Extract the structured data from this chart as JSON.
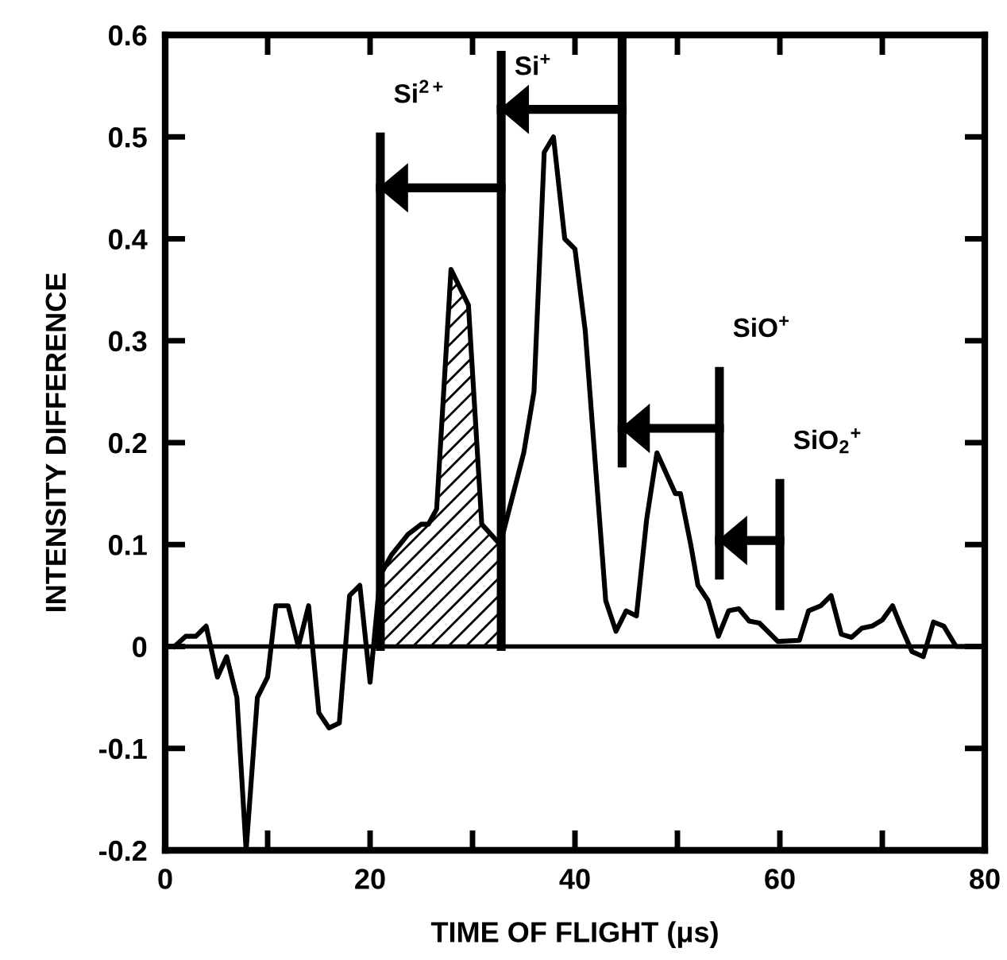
{
  "chart_data": {
    "type": "line",
    "xlabel": "TIME OF FLIGHT (μs)",
    "ylabel": "INTENSITY DIFFERENCE",
    "xlim": [
      0,
      80
    ],
    "ylim": [
      -0.2,
      0.6
    ],
    "xticks": [
      0,
      {
        "value": 10,
        "label": null
      },
      20,
      {
        "value": 30,
        "label": null
      },
      40,
      {
        "value": 50,
        "label": null
      },
      60,
      {
        "value": 70,
        "label": null
      },
      80
    ],
    "yticks": [
      -0.2,
      -0.1,
      0,
      0.1,
      0.2,
      0.3,
      0.4,
      0.5,
      0.6
    ],
    "grid": false,
    "legend": false,
    "marker": "none",
    "line_style": "solid",
    "ref_lines": [
      {
        "axis": "y",
        "value": 0,
        "color": "#000000"
      }
    ],
    "series": [
      {
        "type": "line",
        "color": "#000000",
        "x": [
          0.9,
          2,
          3,
          4,
          5.1,
          6,
          7,
          7.9,
          9,
          10,
          10.8,
          12,
          13,
          14,
          15,
          16,
          17,
          18,
          19,
          20,
          21,
          22.1,
          23.7,
          25,
          25.7,
          26.5,
          27.9,
          29.6,
          30.9,
          32.7,
          35,
          36,
          37,
          37.9,
          39,
          40,
          41,
          43,
          44,
          45,
          46,
          47,
          48,
          49.8,
          50.3,
          51.3,
          52,
          53,
          54,
          55,
          56,
          57,
          58,
          59.8,
          61.9,
          62.8,
          64,
          65,
          66,
          67,
          68,
          69,
          70,
          71,
          71.8,
          72.9,
          74,
          75,
          76,
          77.2,
          78,
          79.5
        ],
        "values": [
          0.0,
          0.01,
          0.01,
          0.02,
          -0.03,
          -0.01,
          -0.05,
          -0.2,
          -0.05,
          -0.03,
          0.04,
          0.04,
          0.0,
          0.04,
          -0.065,
          -0.08,
          -0.075,
          0.05,
          0.06,
          -0.035,
          0.07,
          0.09,
          0.11,
          0.12,
          0.12,
          0.135,
          0.37,
          0.335,
          0.12,
          0.1,
          0.19,
          0.25,
          0.485,
          0.5,
          0.4,
          0.39,
          0.31,
          0.045,
          0.015,
          0.035,
          0.03,
          0.125,
          0.19,
          0.15,
          0.15,
          0.1,
          0.06,
          0.045,
          0.01,
          0.035,
          0.037,
          0.025,
          0.023,
          0.005,
          0.006,
          0.035,
          0.04,
          0.05,
          0.012,
          0.009,
          0.018,
          0.02,
          0.026,
          0.04,
          0.02,
          -0.005,
          -0.01,
          0.024,
          0.02,
          0.0,
          0.0,
          0.0
        ]
      },
      {
        "type": "area",
        "color": "#000000",
        "x": [
          21,
          22.1,
          23.7,
          25,
          25.7,
          26.5,
          27.9,
          29.6,
          30.9,
          32.7
        ],
        "values": [
          0.07,
          0.09,
          0.11,
          0.12,
          0.12,
          0.135,
          0.37,
          0.335,
          0.12,
          0.1
        ]
      },
      {
        "type": "line",
        "color": "#000000",
        "x": [
          21,
          21
        ],
        "values": [
          0,
          0.5
        ]
      },
      {
        "type": "line",
        "color": "#000000",
        "x": [
          32.8,
          32.8
        ],
        "values": [
          0,
          0.58
        ]
      },
      {
        "type": "line",
        "color": "#000000",
        "x": [
          44.6,
          44.6
        ],
        "values": [
          0.18,
          0.6
        ]
      },
      {
        "type": "line",
        "color": "#000000",
        "x": [
          54.1,
          54.1
        ],
        "values": [
          0.07,
          0.27
        ]
      },
      {
        "type": "line",
        "color": "#000000",
        "x": [
          60,
          60
        ],
        "values": [
          0.04,
          0.16
        ]
      },
      {
        "color": "#000000",
        "x": [
          32.8,
          21
        ],
        "values": [
          0.45,
          0.45
        ]
      },
      {
        "color": "#000000",
        "x": [
          44.6,
          32.8
        ],
        "values": [
          0.527,
          0.527
        ]
      },
      {
        "color": "#000000",
        "x": [
          54.1,
          44.6
        ],
        "values": [
          0.214,
          0.214
        ]
      },
      {
        "color": "#000000",
        "x": [
          60,
          54.1
        ],
        "values": [
          0.104,
          0.104
        ]
      }
    ],
    "annotations": [
      {
        "text": "Si$^{2+}$",
        "x": 21,
        "y": 0.5
      },
      {
        "text": "Si$^{+}$",
        "x": 32.8,
        "y": 0.527
      },
      {
        "text": "SiO$^{+}$",
        "x": 54.1,
        "y": 0.27
      },
      {
        "text": "SiO$_{2}$$^{+}$",
        "x": 60,
        "y": 0.16
      }
    ]
  }
}
